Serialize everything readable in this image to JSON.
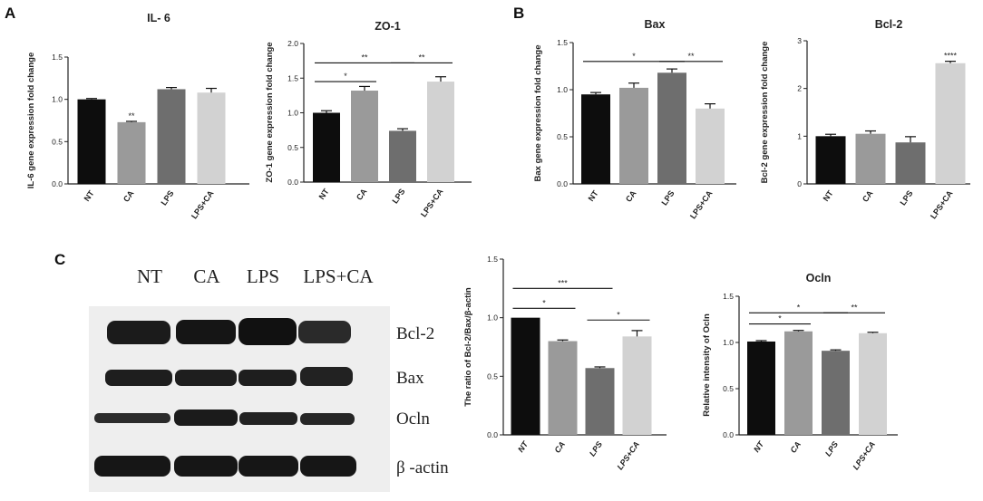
{
  "panels": {
    "a": "A",
    "b": "B",
    "c": "C"
  },
  "blot": {
    "lanes": [
      "NT",
      "CA",
      "LPS",
      "LPS+CA"
    ],
    "rows": [
      "Bcl-2",
      "Bax",
      "Ocln",
      "β -actin"
    ]
  },
  "chart_data": [
    {
      "id": "il6",
      "type": "bar",
      "title": "IL- 6",
      "ylabel": "IL-6 gene expression fold change",
      "categories": [
        "NT",
        "CA",
        "LPS",
        "LPS+CA"
      ],
      "values": [
        1.0,
        0.73,
        1.12,
        1.08
      ],
      "errors": [
        0.01,
        0.01,
        0.02,
        0.05
      ],
      "colors": [
        "#0d0d0d",
        "#9a9a9a",
        "#6e6e6e",
        "#d2d2d2"
      ],
      "ylim": [
        0,
        1.5
      ],
      "yticks": [
        "0.0",
        "0.5",
        "1.0",
        "1.5"
      ],
      "significance": [
        {
          "bar": 1,
          "label": "**"
        }
      ],
      "brackets": []
    },
    {
      "id": "zo1",
      "type": "bar",
      "title": "ZO-1",
      "ylabel": "ZO-1 gene expression fold change",
      "categories": [
        "NT",
        "CA",
        "LPS",
        "LPS+CA"
      ],
      "values": [
        1.0,
        1.32,
        0.74,
        1.45
      ],
      "errors": [
        0.03,
        0.06,
        0.03,
        0.07
      ],
      "colors": [
        "#0d0d0d",
        "#9a9a9a",
        "#6e6e6e",
        "#d2d2d2"
      ],
      "ylim": [
        0,
        2.0
      ],
      "yticks": [
        "0.0",
        "0.5",
        "1.0",
        "1.5",
        "2.0"
      ],
      "significance": [],
      "brackets": [
        {
          "from": 0,
          "to": 1,
          "y": 1.45,
          "label": "*"
        },
        {
          "from": 0,
          "to": 2,
          "y": 1.72,
          "label": "**"
        },
        {
          "from": 2,
          "to": 3,
          "y": 1.72,
          "label": "**"
        }
      ]
    },
    {
      "id": "bax",
      "type": "bar",
      "title": "Bax",
      "ylabel": "Bax gene expression fold change",
      "categories": [
        "NT",
        "CA",
        "LPS",
        "LPS+CA"
      ],
      "values": [
        0.95,
        1.02,
        1.18,
        0.8
      ],
      "errors": [
        0.02,
        0.05,
        0.04,
        0.05
      ],
      "colors": [
        "#0d0d0d",
        "#9a9a9a",
        "#6e6e6e",
        "#d2d2d2"
      ],
      "ylim": [
        0,
        1.5
      ],
      "yticks": [
        "0.0",
        "0.5",
        "1.0",
        "1.5"
      ],
      "significance": [],
      "brackets": [
        {
          "from": 0,
          "to": 2,
          "y": 1.3,
          "label": "*"
        },
        {
          "from": 2,
          "to": 3,
          "y": 1.3,
          "label": "**"
        }
      ]
    },
    {
      "id": "bcl2",
      "type": "bar",
      "title": "Bcl-2",
      "ylabel": "Bcl-2 gene expression fold change",
      "categories": [
        "NT",
        "CA",
        "LPS",
        "LPS+CA"
      ],
      "values": [
        1.0,
        1.05,
        0.87,
        2.53
      ],
      "errors": [
        0.04,
        0.06,
        0.12,
        0.04
      ],
      "colors": [
        "#0d0d0d",
        "#9a9a9a",
        "#6e6e6e",
        "#d2d2d2"
      ],
      "ylim": [
        0,
        3
      ],
      "yticks": [
        "0",
        "1",
        "2",
        "3"
      ],
      "significance": [
        {
          "bar": 3,
          "label": "****"
        }
      ],
      "brackets": []
    },
    {
      "id": "ratio",
      "type": "bar",
      "title": "",
      "ylabel": "The ratio of Bcl-2/Bax/β-actin",
      "categories": [
        "NT",
        "CA",
        "LPS",
        "LPS+CA"
      ],
      "values": [
        1.0,
        0.8,
        0.57,
        0.84
      ],
      "errors": [
        0.0,
        0.01,
        0.01,
        0.05
      ],
      "colors": [
        "#0d0d0d",
        "#9a9a9a",
        "#6e6e6e",
        "#d2d2d2"
      ],
      "ylim": [
        0,
        1.5
      ],
      "yticks": [
        "0.0",
        "0.5",
        "1.0",
        "1.5"
      ],
      "significance": [],
      "brackets": [
        {
          "from": 0,
          "to": 1,
          "y": 1.08,
          "label": "*"
        },
        {
          "from": 0,
          "to": 2,
          "y": 1.25,
          "label": "***"
        },
        {
          "from": 2,
          "to": 3,
          "y": 0.98,
          "label": "*"
        }
      ]
    },
    {
      "id": "ocln",
      "type": "bar",
      "title": "Ocln",
      "ylabel": "Relative intensity of Ocln",
      "categories": [
        "NT",
        "CA",
        "LPS",
        "LPS+CA"
      ],
      "values": [
        1.01,
        1.12,
        0.91,
        1.1
      ],
      "errors": [
        0.01,
        0.01,
        0.01,
        0.01
      ],
      "colors": [
        "#0d0d0d",
        "#9a9a9a",
        "#6e6e6e",
        "#d2d2d2"
      ],
      "ylim": [
        0,
        1.5
      ],
      "yticks": [
        "0.0",
        "0.5",
        "1.0",
        "1.5"
      ],
      "significance": [],
      "brackets": [
        {
          "from": 0,
          "to": 1,
          "y": 1.2,
          "label": "*"
        },
        {
          "from": 0,
          "to": 2,
          "y": 1.32,
          "label": "*"
        },
        {
          "from": 2,
          "to": 3,
          "y": 1.32,
          "label": "**"
        }
      ]
    }
  ]
}
